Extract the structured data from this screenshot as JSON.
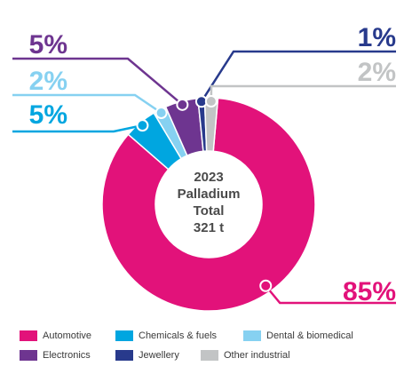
{
  "chart_data": {
    "type": "donut",
    "center_label": [
      "2023",
      "Palladium",
      "Total",
      "321 t"
    ],
    "slices": [
      {
        "name": "Automotive",
        "value": 85,
        "label": "85%",
        "color": "#e2127a"
      },
      {
        "name": "Chemicals & fuels",
        "value": 5,
        "label": "5%",
        "color": "#00a6e0"
      },
      {
        "name": "Dental & biomedical",
        "value": 2,
        "label": "2%",
        "color": "#86d1f1"
      },
      {
        "name": "Electronics",
        "value": 5,
        "label": "5%",
        "color": "#6e3590"
      },
      {
        "name": "Jewellery",
        "value": 1,
        "label": "1%",
        "color": "#283a8c"
      },
      {
        "name": "Other industrial",
        "value": 2,
        "label": "2%",
        "color": "#c2c4c5"
      }
    ]
  }
}
